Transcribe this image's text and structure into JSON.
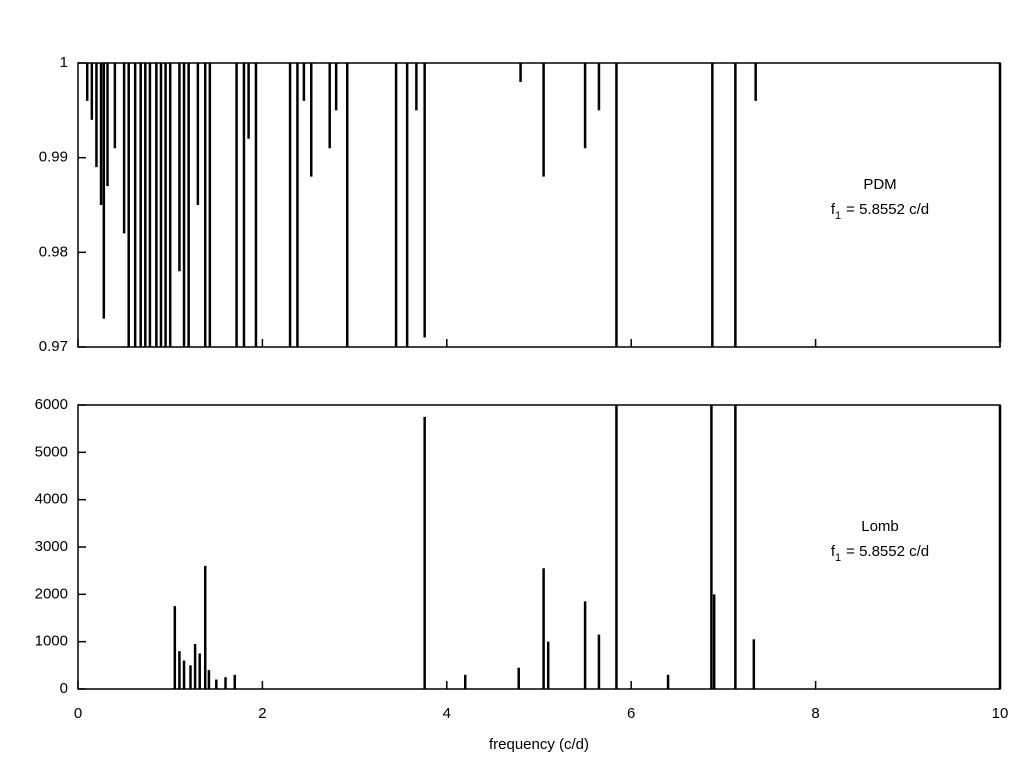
{
  "chart_data": [
    {
      "type": "stem",
      "stem_from": "top",
      "color": "#000000",
      "annotations": [
        {
          "text": "PDM"
        },
        {
          "text": "f",
          "sub": "1",
          "rest": "= 5.8552 c/d"
        }
      ],
      "xlim": [
        0,
        10
      ],
      "xticks": [
        0,
        2,
        4,
        6,
        8,
        10
      ],
      "show_xtick_labels": false,
      "ylim": [
        0.97,
        1
      ],
      "yticks": [
        0.97,
        0.98,
        0.99,
        1
      ],
      "x": [
        0.1,
        0.15,
        0.2,
        0.25,
        0.28,
        0.32,
        0.4,
        0.5,
        0.55,
        0.62,
        0.68,
        0.73,
        0.78,
        0.85,
        0.9,
        0.95,
        1.0,
        1.1,
        1.15,
        1.2,
        1.3,
        1.38,
        1.43,
        1.72,
        1.8,
        1.85,
        1.93,
        2.3,
        2.38,
        2.45,
        2.53,
        2.73,
        2.8,
        2.92,
        3.45,
        3.57,
        3.67,
        3.76,
        4.8,
        5.05,
        5.5,
        5.65,
        5.84,
        6.88,
        7.13,
        7.35,
        10.0
      ],
      "values": [
        0.996,
        0.994,
        0.989,
        0.985,
        0.973,
        0.987,
        0.991,
        0.982,
        0.97,
        0.97,
        0.97,
        0.97,
        0.97,
        0.97,
        0.97,
        0.97,
        0.97,
        0.978,
        0.97,
        0.97,
        0.985,
        0.97,
        0.97,
        0.97,
        0.97,
        0.992,
        0.97,
        0.97,
        0.97,
        0.996,
        0.988,
        0.991,
        0.995,
        0.97,
        0.97,
        0.97,
        0.995,
        0.971,
        0.998,
        0.988,
        0.991,
        0.995,
        0.97,
        0.97,
        0.97,
        0.996,
        0.9705
      ]
    },
    {
      "type": "stem",
      "stem_from": "bottom",
      "color": "#000000",
      "annotations": [
        {
          "text": "Lomb"
        },
        {
          "text": "f",
          "sub": "1",
          "rest": "= 5.8552 c/d"
        }
      ],
      "xlabel": "frequency (c/d)",
      "xlim": [
        0,
        10
      ],
      "xticks": [
        0,
        2,
        4,
        6,
        8,
        10
      ],
      "show_xtick_labels": true,
      "ylim": [
        0,
        6000
      ],
      "yticks": [
        0,
        1000,
        2000,
        3000,
        4000,
        5000,
        6000
      ],
      "x": [
        1.05,
        1.1,
        1.15,
        1.22,
        1.27,
        1.32,
        1.38,
        1.42,
        1.5,
        1.6,
        1.7,
        3.76,
        4.2,
        4.78,
        5.05,
        5.1,
        5.5,
        5.65,
        5.84,
        6.4,
        6.87,
        6.9,
        7.13,
        7.33,
        10.0
      ],
      "values": [
        1750,
        800,
        600,
        500,
        950,
        750,
        2600,
        400,
        200,
        250,
        300,
        5750,
        300,
        450,
        2550,
        1000,
        1850,
        1150,
        6000,
        300,
        6000,
        2000,
        6000,
        1050,
        6000
      ]
    }
  ]
}
